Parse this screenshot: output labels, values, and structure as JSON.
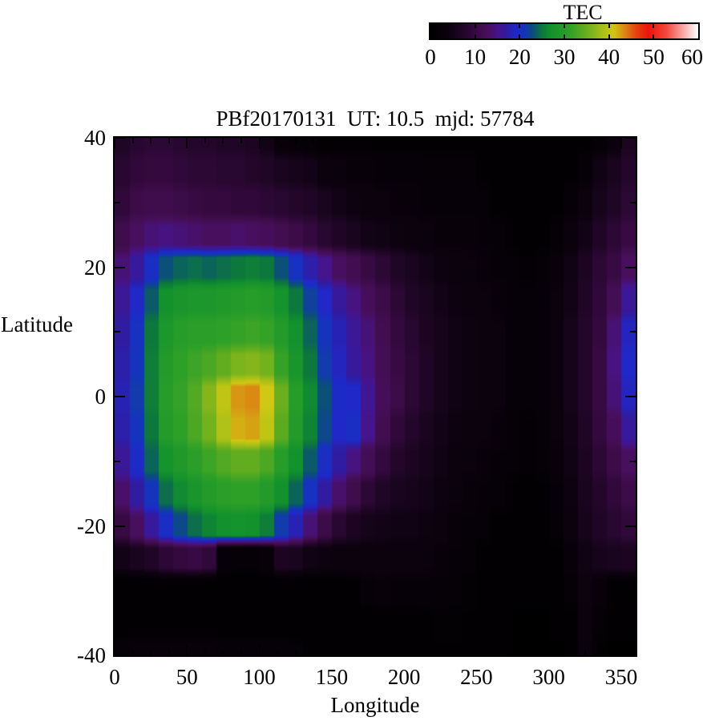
{
  "title": "PBf20170131  UT: 10.5  mjd: 57784",
  "colorbar": {
    "label": "TEC",
    "min": 0,
    "max": 60,
    "tick_labels": [
      "0",
      "10",
      "20",
      "30",
      "40",
      "50",
      "60"
    ],
    "tick_values": [
      0,
      10,
      20,
      30,
      40,
      50,
      60
    ],
    "interior_tick_values": [
      10,
      20,
      30,
      40,
      50
    ],
    "colormap_stops": [
      [
        0,
        "#000000"
      ],
      [
        4,
        "#0d0210"
      ],
      [
        7,
        "#200626"
      ],
      [
        9,
        "#30083a"
      ],
      [
        11,
        "#400d4c"
      ],
      [
        13,
        "#480f5e"
      ],
      [
        15,
        "#46148c"
      ],
      [
        17,
        "#301ca0"
      ],
      [
        19,
        "#2028c8"
      ],
      [
        21,
        "#1434be"
      ],
      [
        23,
        "#0a5078"
      ],
      [
        25,
        "#0c783c"
      ],
      [
        27,
        "#12912d"
      ],
      [
        31,
        "#2da028"
      ],
      [
        35,
        "#69af1e"
      ],
      [
        38,
        "#a0be19"
      ],
      [
        41,
        "#d0c812"
      ],
      [
        43,
        "#d79614"
      ],
      [
        46,
        "#e64610"
      ],
      [
        49,
        "#ee140c"
      ],
      [
        53,
        "#f24a3e"
      ],
      [
        56,
        "#f89690"
      ],
      [
        60,
        "#ffffff"
      ]
    ]
  },
  "axes": {
    "x": {
      "label": "Longitude",
      "min": 0,
      "max": 360,
      "tick_values": [
        0,
        50,
        100,
        150,
        200,
        250,
        300,
        350
      ],
      "tick_labels": [
        "0",
        "50",
        "100",
        "150",
        "200",
        "250",
        "300",
        "350"
      ],
      "minor_step": 12.5
    },
    "y": {
      "label": "Latitude",
      "min": -40,
      "max": 40,
      "tick_values": [
        40,
        20,
        0,
        -20,
        -40
      ],
      "tick_labels": [
        "40",
        "20",
        "0",
        "-20",
        "-40"
      ],
      "minor_values": [
        30,
        10,
        -10,
        -30
      ]
    }
  },
  "chart_data": {
    "type": "heatmap",
    "units": "TEC",
    "value_range": [
      0,
      60
    ],
    "x_centers": [
      5,
      15,
      25,
      35,
      45,
      55,
      65,
      75,
      85,
      95,
      105,
      115,
      125,
      135,
      145,
      155,
      165,
      175,
      185,
      195,
      205,
      215,
      225,
      235,
      245,
      255,
      265,
      275,
      285,
      295,
      305,
      315,
      325,
      335,
      345,
      355
    ],
    "y_centers": [
      40,
      35,
      30,
      25,
      20,
      15,
      10,
      5,
      0,
      -5,
      -10,
      -15,
      -20,
      -25,
      -30,
      -35,
      -40
    ],
    "values": [
      [
        7,
        8,
        8.5,
        8.5,
        8,
        7.5,
        7.5,
        7,
        7,
        6.5,
        5,
        2.5,
        2,
        1.5,
        1,
        1,
        1,
        1,
        1,
        1,
        1,
        1,
        1,
        1,
        1,
        1,
        0.5,
        0.5,
        0.5,
        0.5,
        0.5,
        0.5,
        1,
        1.5,
        3.5,
        6.5
      ],
      [
        8,
        9,
        9.5,
        9.5,
        9,
        8.5,
        8.5,
        8,
        8,
        7.5,
        7,
        6,
        5.5,
        5,
        3.5,
        3,
        2.5,
        2.5,
        2,
        2,
        2,
        1.5,
        1.5,
        1.5,
        1.5,
        1,
        1,
        0.5,
        0.5,
        0.5,
        0.5,
        1,
        2,
        4.5,
        6,
        7.5
      ],
      [
        9,
        10.5,
        11,
        11,
        10.5,
        10,
        9.5,
        9.5,
        9,
        9,
        8.5,
        8,
        7.5,
        7,
        6,
        5,
        4,
        3.5,
        3,
        2.5,
        2.5,
        2,
        2,
        2,
        2,
        1.5,
        1,
        1,
        0.5,
        0.5,
        1,
        2,
        3.5,
        5.5,
        7,
        8.5
      ],
      [
        11,
        13,
        14,
        14.5,
        14,
        13.5,
        13,
        13,
        13.5,
        13,
        12.5,
        11.5,
        10.5,
        9.5,
        8,
        7,
        6,
        5,
        4.5,
        4,
        3.5,
        3,
        2.5,
        2.5,
        2.5,
        2,
        1.5,
        1,
        1,
        1,
        1.5,
        3,
        5,
        7,
        8.5,
        10
      ],
      [
        14,
        16.5,
        20,
        23,
        24,
        24.5,
        24,
        24.5,
        25,
        25.5,
        25,
        23,
        20.5,
        17.5,
        15,
        13,
        11.5,
        10,
        8.5,
        7,
        6,
        5,
        4,
        3.5,
        3,
        2.5,
        2,
        1.5,
        1,
        1.5,
        2.5,
        4.5,
        6.5,
        8.5,
        10,
        13
      ],
      [
        16,
        19,
        23.5,
        27,
        28,
        28.5,
        28.5,
        29,
        29.5,
        30,
        29.5,
        27.5,
        25,
        22,
        19,
        16.5,
        14.5,
        12.5,
        10.5,
        8.5,
        7,
        6,
        5,
        4,
        3.5,
        3,
        2.5,
        2,
        1.5,
        2,
        3,
        5,
        7,
        9,
        12,
        16
      ],
      [
        17,
        20.5,
        25,
        28.5,
        30,
        30.5,
        30.5,
        31,
        31.5,
        32,
        31.5,
        29.5,
        27,
        24,
        21,
        18,
        16,
        14,
        11.5,
        9.5,
        8,
        6.5,
        5.5,
        4.5,
        4,
        3.5,
        3,
        2,
        1.5,
        2,
        3.5,
        5.5,
        7.5,
        9.5,
        14,
        18.5
      ],
      [
        17.5,
        21,
        25.5,
        29.5,
        31,
        32,
        33,
        34.5,
        36,
        36.5,
        35.5,
        31.5,
        28,
        25,
        21.5,
        18.5,
        16.5,
        14.5,
        12,
        10,
        8.5,
        7,
        5.5,
        4.5,
        4,
        3.5,
        3,
        2,
        1.5,
        2,
        3.5,
        5.5,
        7.5,
        10,
        14.5,
        19
      ],
      [
        18,
        21.5,
        25.5,
        30,
        31.5,
        33.5,
        36.5,
        40,
        43,
        43.5,
        41,
        35,
        30,
        26.5,
        23,
        19.5,
        19,
        15.5,
        12.5,
        10.5,
        8.5,
        7,
        5.5,
        4.5,
        4,
        3.5,
        3,
        2,
        1.5,
        2,
        3.5,
        5.5,
        7.5,
        10,
        14,
        18.5
      ],
      [
        17.5,
        21,
        25,
        29.5,
        31,
        33,
        35.5,
        39,
        42,
        42.5,
        40,
        34,
        29.5,
        26,
        22.5,
        19,
        20,
        15,
        11.5,
        9,
        7.5,
        6,
        5,
        4,
        3.5,
        3,
        2.5,
        1.5,
        1,
        1.5,
        3,
        5,
        7,
        9.5,
        12.5,
        16.5
      ],
      [
        16,
        19.5,
        24,
        27.5,
        29,
        30.5,
        32,
        33.5,
        34.5,
        34.5,
        33,
        30,
        27,
        23.5,
        20,
        17,
        14.5,
        12,
        9.5,
        7.5,
        6.5,
        5.5,
        4.5,
        3.5,
        3,
        2.5,
        2,
        1.5,
        1,
        1.5,
        2.5,
        4.5,
        6.5,
        8.5,
        10.5,
        13
      ],
      [
        13.5,
        17,
        21,
        24.5,
        26.5,
        28,
        29.5,
        30.5,
        31,
        31,
        29.5,
        27,
        24,
        20.5,
        17,
        13.5,
        11,
        8.5,
        7,
        6,
        5.5,
        5,
        4,
        3,
        2.5,
        2,
        1.5,
        1,
        1,
        1,
        2,
        4,
        6,
        7.5,
        9,
        10.5
      ],
      [
        10,
        13,
        16.5,
        20,
        22.5,
        24.5,
        26,
        27,
        27.5,
        27,
        25.5,
        21.5,
        18,
        14,
        10.5,
        8,
        6.5,
        5.5,
        5,
        4.5,
        4.5,
        4,
        3.5,
        2.5,
        2,
        1.5,
        1,
        1,
        0.5,
        1,
        1.5,
        3.5,
        5.5,
        7,
        8,
        9
      ],
      [
        5,
        6,
        7,
        8.5,
        9.5,
        10,
        9,
        2,
        1.5,
        1.5,
        2.5,
        6.5,
        6,
        4.5,
        4,
        3.5,
        3.5,
        3.5,
        3.5,
        3.5,
        3.5,
        3,
        2.5,
        2,
        1.5,
        1,
        0.5,
        0.5,
        0.5,
        0.5,
        1,
        2.5,
        4.5,
        5.5,
        6,
        6.5
      ],
      [
        0.5,
        0.5,
        0.5,
        0.5,
        0.5,
        0.5,
        0.5,
        0.5,
        0.5,
        0.5,
        0.5,
        0.5,
        0.5,
        0.5,
        0.5,
        0.5,
        1,
        2,
        2.5,
        2,
        2,
        2,
        1.8,
        1.5,
        1.2,
        1,
        0.5,
        0.5,
        0.5,
        0.5,
        1,
        1.5,
        4,
        2.5,
        1,
        1
      ],
      [
        0.5,
        0.5,
        0.5,
        0.5,
        0.5,
        0.5,
        0.5,
        0.5,
        0.5,
        0.5,
        0.5,
        0.5,
        0.5,
        0.5,
        0.5,
        0.5,
        0.5,
        0.5,
        0.5,
        0.5,
        0.5,
        1,
        1.2,
        1.2,
        1,
        0.8,
        0.5,
        0.3,
        0.3,
        0.3,
        0.5,
        1,
        3.5,
        1.5,
        0.5,
        0.5
      ],
      [
        2,
        2.5,
        2.5,
        2.5,
        2.5,
        2.5,
        2.5,
        2,
        2,
        2,
        2,
        2,
        1.5,
        1,
        0.5,
        0.5,
        0.5,
        0.5,
        0.5,
        0.5,
        0.5,
        0.5,
        1,
        1,
        1,
        0.8,
        0.5,
        0.3,
        0.3,
        0.3,
        0.3,
        0.5,
        3,
        1,
        0.3,
        0.3
      ]
    ]
  }
}
